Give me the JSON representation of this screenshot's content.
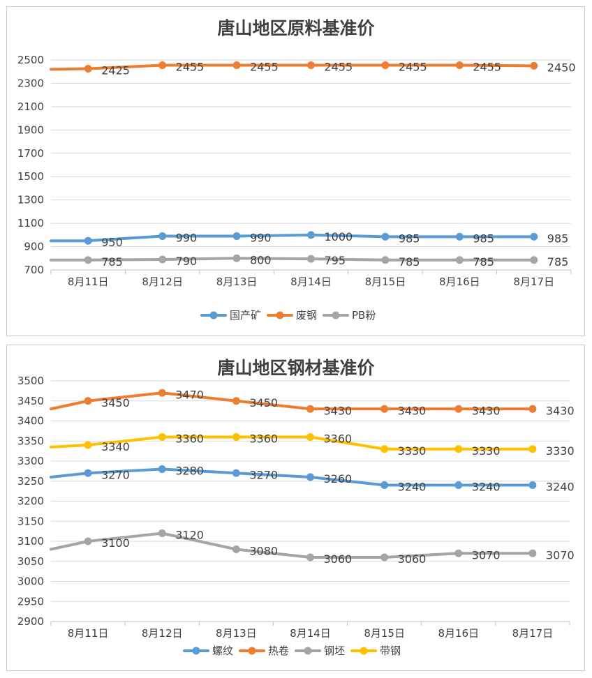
{
  "chart_data": [
    {
      "type": "line",
      "title": "唐山地区原料基准价",
      "categories": [
        "8月11日",
        "8月12日",
        "8月13日",
        "8月14日",
        "8月15日",
        "8月16日",
        "8月17日"
      ],
      "y_ticks": [
        700,
        900,
        1100,
        1300,
        1500,
        1700,
        1900,
        2100,
        2300,
        2500
      ],
      "ylim": [
        700,
        2500
      ],
      "series": [
        {
          "name": "国产矿",
          "color": "#5B9BD5",
          "start": 950,
          "values": [
            950,
            990,
            990,
            1000,
            985,
            985,
            985
          ]
        },
        {
          "name": "废钢",
          "color": "#ED7D31",
          "start": 2420,
          "values": [
            2425,
            2455,
            2455,
            2455,
            2455,
            2455,
            2450
          ]
        },
        {
          "name": "PB粉",
          "color": "#A5A5A5",
          "start": 785,
          "values": [
            785,
            790,
            800,
            795,
            785,
            785,
            785
          ]
        }
      ]
    },
    {
      "type": "line",
      "title": "唐山地区钢材基准价",
      "categories": [
        "8月11日",
        "8月12日",
        "8月13日",
        "8月14日",
        "8月15日",
        "8月16日",
        "8月17日"
      ],
      "y_ticks": [
        2900,
        2950,
        3000,
        3050,
        3100,
        3150,
        3200,
        3250,
        3300,
        3350,
        3400,
        3450,
        3500
      ],
      "ylim": [
        2900,
        3500
      ],
      "series": [
        {
          "name": "螺纹",
          "color": "#5B9BD5",
          "start": 3260,
          "values": [
            3270,
            3280,
            3270,
            3260,
            3240,
            3240,
            3240
          ]
        },
        {
          "name": "热卷",
          "color": "#ED7D31",
          "start": 3430,
          "values": [
            3450,
            3470,
            3450,
            3430,
            3430,
            3430,
            3430
          ]
        },
        {
          "name": "钢坯",
          "color": "#A5A5A5",
          "start": 3080,
          "values": [
            3100,
            3120,
            3080,
            3060,
            3060,
            3070,
            3070
          ]
        },
        {
          "name": "带钢",
          "color": "#FFC000",
          "start": 3335,
          "values": [
            3340,
            3360,
            3360,
            3360,
            3330,
            3330,
            3330
          ]
        }
      ]
    }
  ]
}
